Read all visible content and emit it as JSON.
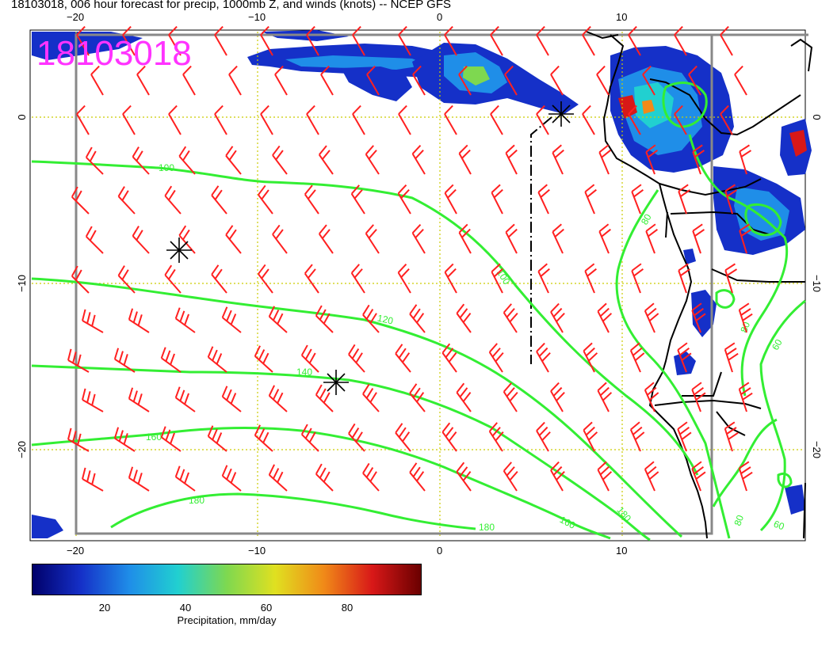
{
  "title": "18103018, 006 hour forecast for precip, 1000mb Z, and winds (knots) -- NCEP GFS",
  "stamp": {
    "text": "18103018",
    "color": "#ff33ff"
  },
  "axes": {
    "lon_labels": [
      "−20",
      "−10",
      "0",
      "10"
    ],
    "lat_labels": [
      "0",
      "−10",
      "−20"
    ]
  },
  "colors": {
    "contour": "#33ee33",
    "barb": "#ff2020",
    "grid": "#cccc00",
    "frame": "#888888",
    "coast": "#000000"
  },
  "contours": [
    {
      "label": "100"
    },
    {
      "label": "120"
    },
    {
      "label": "140"
    },
    {
      "label": "160"
    },
    {
      "label": "180"
    },
    {
      "label": "80"
    },
    {
      "label": "60"
    }
  ],
  "colorbar": {
    "ticks": [
      "20",
      "40",
      "60",
      "80"
    ],
    "title": "Precipitation, mm/day",
    "stops": [
      "#00006a",
      "#1530c8",
      "#1f8ee8",
      "#21d0d0",
      "#7ed850",
      "#e0e020",
      "#f08a18",
      "#d81818",
      "#6a0000"
    ]
  }
}
